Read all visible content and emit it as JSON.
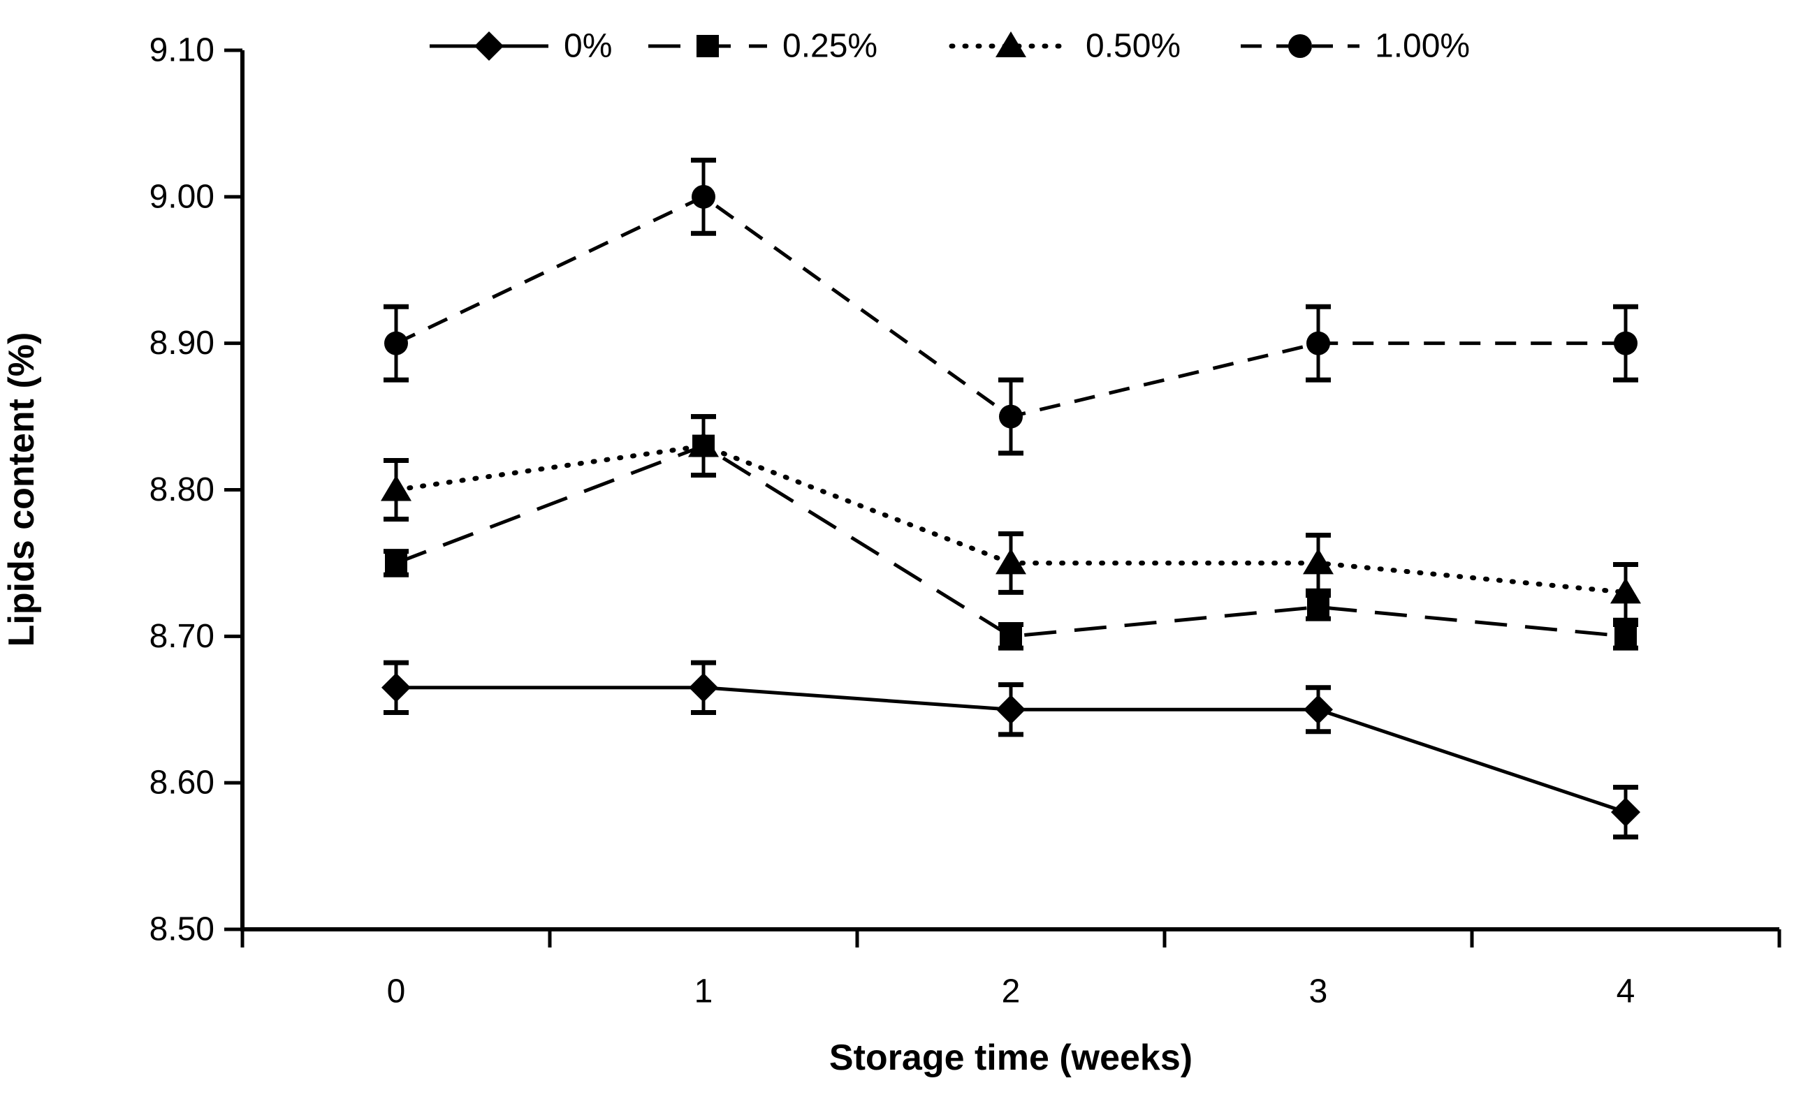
{
  "chart_data": {
    "type": "line",
    "title": "",
    "xlabel": "Storage time (weeks)",
    "ylabel": "Lipids content (%)",
    "x": [
      0,
      1,
      2,
      3,
      4
    ],
    "x_tick_labels": [
      "0",
      "1",
      "2",
      "3",
      "4"
    ],
    "xlim": [
      -0.5,
      4.5
    ],
    "y_ticks": [
      8.5,
      8.6,
      8.7,
      8.8,
      8.9,
      9.0,
      9.1
    ],
    "y_tick_labels": [
      "8.50",
      "8.60",
      "8.70",
      "8.80",
      "8.90",
      "9.00",
      "9.10"
    ],
    "ylim": [
      8.5,
      9.1
    ],
    "grid": false,
    "legend_position": "top",
    "foreground_color": "#000000",
    "background_color": "#ffffff",
    "error_bars": true,
    "series": [
      {
        "name": "0%",
        "marker": "diamond",
        "line_style": "solid",
        "values": [
          8.665,
          8.665,
          8.65,
          8.65,
          8.58
        ],
        "error": [
          0.017,
          0.017,
          0.017,
          0.015,
          0.017
        ]
      },
      {
        "name": "0.25%",
        "marker": "square",
        "line_style": "long-dash",
        "values": [
          8.75,
          8.83,
          8.7,
          8.72,
          8.7
        ],
        "error": [
          0.008,
          0.02,
          0.008,
          0.008,
          0.008
        ]
      },
      {
        "name": "0.50%",
        "marker": "triangle",
        "line_style": "dotted",
        "values": [
          8.8,
          8.83,
          8.75,
          8.75,
          8.73
        ],
        "error": [
          0.02,
          0.02,
          0.02,
          0.019,
          0.019
        ]
      },
      {
        "name": "1.00%",
        "marker": "circle",
        "line_style": "dash",
        "values": [
          8.9,
          9.0,
          8.85,
          8.9,
          8.9
        ],
        "error": [
          0.025,
          0.025,
          0.025,
          0.025,
          0.025
        ]
      }
    ]
  }
}
